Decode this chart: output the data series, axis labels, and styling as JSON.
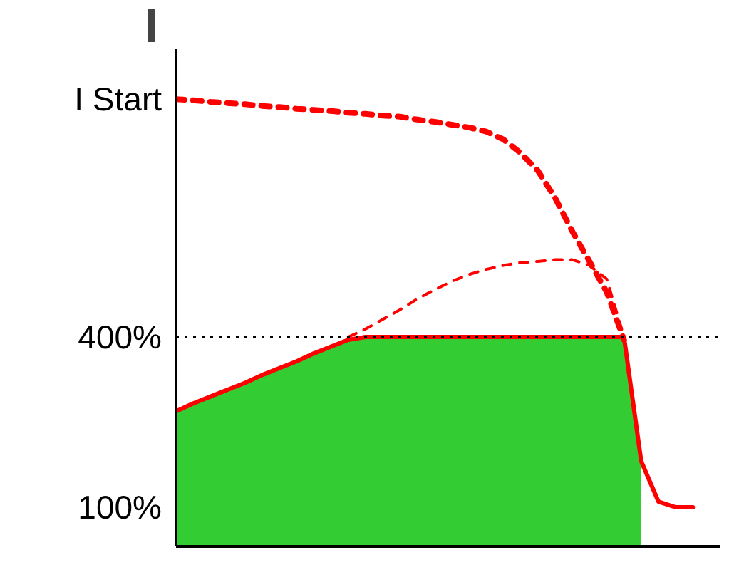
{
  "chart_data": {
    "type": "line",
    "ylabel": "I",
    "categories": [
      null,
      null,
      null,
      null,
      null,
      null,
      null,
      null,
      null,
      null,
      null,
      null,
      null,
      null,
      null,
      null,
      null,
      null,
      null,
      null,
      null,
      null,
      null,
      null,
      null,
      null,
      null,
      null,
      null,
      null,
      null,
      null
    ],
    "series": [
      {
        "type": "area",
        "color": "#33cc33",
        "values": [
          269,
          283,
          295,
          307,
          319,
          333,
          345,
          357,
          371,
          383,
          395,
          400,
          400,
          400,
          400,
          400,
          400,
          400,
          400,
          400,
          400,
          400,
          400,
          400,
          400,
          400,
          400,
          181,
          null,
          null,
          null,
          null
        ]
      },
      {
        "color": "#ff0000",
        "line_style": "dashed",
        "values": [
          819,
          817,
          814,
          812,
          810,
          807,
          805,
          802,
          800,
          798,
          795,
          793,
          790,
          788,
          783,
          779,
          774,
          769,
          762,
          748,
          724,
          693,
          645,
          586,
          533,
          479,
          395,
          null,
          null,
          null,
          null,
          null
        ]
      },
      {
        "color": "#ff0000",
        "line_style": "dashed",
        "values": [
          null,
          null,
          null,
          null,
          null,
          null,
          null,
          null,
          null,
          null,
          400,
          414,
          431,
          448,
          467,
          483,
          498,
          510,
          519,
          526,
          531,
          533,
          536,
          536,
          526,
          502,
          400,
          null,
          null,
          null,
          null,
          null
        ]
      },
      {
        "color": "#ff0000",
        "line_style": "solid",
        "values": [
          269,
          283,
          295,
          307,
          319,
          333,
          345,
          357,
          371,
          383,
          395,
          400,
          400,
          400,
          400,
          400,
          400,
          400,
          400,
          400,
          400,
          400,
          400,
          400,
          400,
          400,
          400,
          181,
          110,
          100,
          100,
          null
        ]
      }
    ],
    "ylim": [
      31,
      907
    ],
    "yticks": [
      {
        "value": 100,
        "label": "100%"
      },
      {
        "value": 400,
        "label": "400%"
      },
      {
        "value": 819,
        "label": "I Start"
      }
    ],
    "ref_lines": [
      {
        "axis": "y",
        "value": 400,
        "line_style": "dotted",
        "color": "#000000"
      }
    ],
    "tick_labels": "y",
    "grid": false
  }
}
